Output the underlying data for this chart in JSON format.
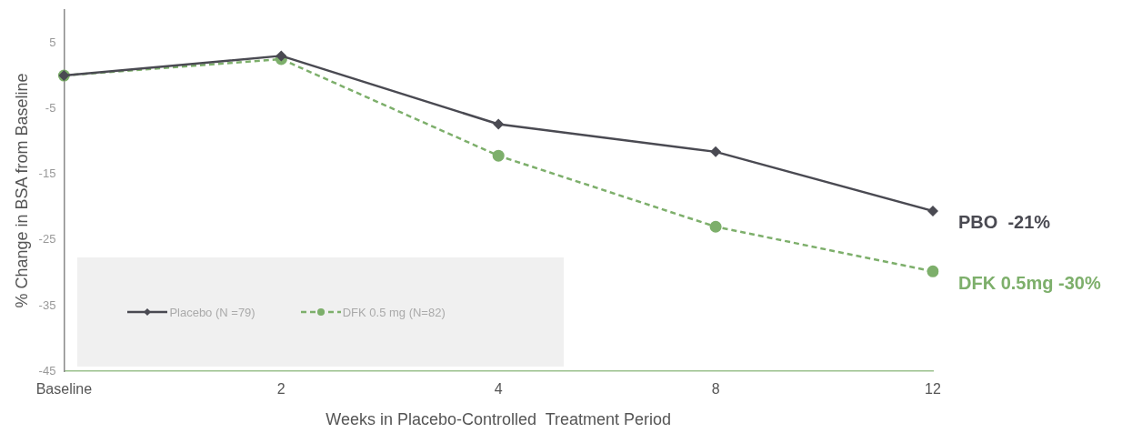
{
  "chart_data": {
    "type": "line",
    "xlabel": "Weeks in Placebo-Controlled  Treatment Period",
    "ylabel": "% Change in BSA from Baseline",
    "categories": [
      "Baseline",
      "2",
      "4",
      "8",
      "12"
    ],
    "series": [
      {
        "name": "Placebo (N =79)",
        "color": "#4a4a52",
        "values": [
          0,
          3,
          -7.4,
          -11.6,
          -20.6
        ],
        "marker": "diamond",
        "line_style": "solid"
      },
      {
        "name": "DFK 0.5 mg (N=82)",
        "color": "#7daf6b",
        "values": [
          0,
          2.5,
          -12.2,
          -23,
          -29.8
        ],
        "marker": "circle",
        "line_style": "dashed"
      }
    ],
    "ylim": [
      -45,
      10
    ],
    "yticks": [
      -45,
      -35,
      -25,
      -15,
      -5,
      5
    ],
    "grid": false,
    "legend": "bottom left",
    "annotations": [
      {
        "text": "PBO  -21%",
        "x": "12",
        "y": -20.6
      },
      {
        "text": "DFK 0.5mg -30%",
        "x": "12",
        "y": -29.8
      }
    ]
  }
}
